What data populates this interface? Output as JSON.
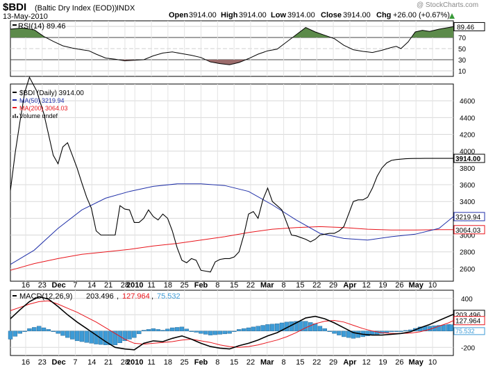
{
  "header": {
    "symbol": "$BDI",
    "name": "(Baltic Dry Index (EOD))",
    "exchange": "INDX",
    "date": "13-May-2010",
    "open_label": "Open",
    "open": "3914.00",
    "high_label": "High",
    "high": "3914.00",
    "low_label": "Low",
    "low": "3914.00",
    "close_label": "Close",
    "close": "3914.00",
    "chg_label": "Chg",
    "chg": "+26.00 (+0.67%)",
    "watermark": "@ StockCharts.com"
  },
  "colors": {
    "price": "#000000",
    "ma50": "#1f2fa8",
    "ma200": "#e8141b",
    "rsi_line": "#000000",
    "rsi_over": "#5c8a4a",
    "rsi_under": "#9b6b6b",
    "macd_line": "#000000",
    "signal_line": "#e8141b",
    "hist": "#3d9bd6",
    "grid": "#d8d8d8",
    "price_badge": "#000000",
    "ma50_badge": "#1f2fa8",
    "ma200_badge": "#e8141b"
  },
  "chart_data": [
    {
      "type": "line",
      "panel": "rsi",
      "legend": "RSI(14) 89.46",
      "badge": "89.46",
      "ylim": [
        0,
        100
      ],
      "ticks": [
        "90",
        "70",
        "50",
        "30",
        "10"
      ],
      "overbought": 70,
      "oversold": 30,
      "x": [
        0,
        2,
        5,
        10,
        14,
        18,
        22,
        26,
        30,
        33,
        36,
        40,
        44,
        48,
        52,
        56,
        60,
        64,
        68,
        72,
        76,
        80,
        84,
        88,
        92,
        96,
        100,
        104,
        108,
        112,
        116,
        120,
        124,
        128,
        132,
        136,
        140,
        144,
        148,
        150,
        152,
        156,
        160,
        162,
        164,
        167,
        170,
        173,
        176,
        180,
        184,
        186
      ],
      "values": [
        85,
        86,
        87,
        84,
        72,
        63,
        55,
        51,
        48,
        46,
        40,
        33,
        31,
        28,
        29,
        30,
        37,
        42,
        44,
        41,
        38,
        34,
        26,
        23,
        21,
        25,
        32,
        40,
        46,
        49,
        62,
        75,
        88,
        80,
        74,
        68,
        56,
        48,
        45,
        44,
        43,
        47,
        52,
        54,
        50,
        62,
        80,
        83,
        81,
        85,
        88,
        89.46
      ]
    },
    {
      "type": "line",
      "panel": "price",
      "legend_price": "$BDI (Daily) 3914.00",
      "legend_ma50": "MA(50) 3219.94",
      "legend_ma200": "MA(200) 3064.03",
      "legend_volume": "Volume undef",
      "badge_price": "3914.00",
      "badge_ma50": "3219.94",
      "badge_ma200": "3064.03",
      "ylim": [
        2450,
        4800
      ],
      "ticks": [
        "4600",
        "4400",
        "4200",
        "4000",
        "3800",
        "3600",
        "3400",
        "3200",
        "3000",
        "2800",
        "2600"
      ],
      "x_price": [
        0,
        2,
        4,
        6,
        8,
        11,
        14,
        16,
        18,
        20,
        22,
        24,
        26,
        28,
        30,
        32,
        34,
        36,
        38,
        40,
        42,
        44,
        46,
        48,
        50,
        52,
        54,
        56,
        58,
        60,
        62,
        64,
        66,
        68,
        70,
        72,
        74,
        76,
        78,
        80,
        82,
        84,
        86,
        88,
        90,
        92,
        94,
        96,
        98,
        100,
        102,
        104,
        106,
        108,
        110,
        112,
        114,
        116,
        118,
        120,
        122,
        124,
        126,
        128,
        130,
        132,
        134,
        136,
        138,
        140,
        142,
        144,
        146,
        148,
        150,
        152,
        154,
        156,
        158,
        160,
        162,
        164,
        166,
        168,
        170,
        172,
        174,
        176,
        178,
        180,
        182,
        184,
        186
      ],
      "price": [
        3530,
        3980,
        4350,
        4700,
        4880,
        4720,
        4450,
        4200,
        3950,
        3850,
        4050,
        4100,
        3950,
        3800,
        3620,
        3450,
        3320,
        3050,
        3000,
        3000,
        3000,
        3000,
        3350,
        3310,
        3300,
        3150,
        3150,
        3200,
        3300,
        3220,
        3180,
        3250,
        3200,
        3050,
        2850,
        2700,
        2670,
        2720,
        2700,
        2580,
        2570,
        2560,
        2680,
        2710,
        2720,
        2720,
        2740,
        2800,
        3000,
        3250,
        3280,
        3200,
        3420,
        3560,
        3400,
        3350,
        3300,
        3150,
        3000,
        2990,
        2970,
        2950,
        2920,
        2950,
        3000,
        3010,
        3020,
        3020,
        3050,
        3100,
        3250,
        3400,
        3420,
        3420,
        3450,
        3560,
        3700,
        3800,
        3860,
        3890,
        3900,
        3905,
        3910,
        3912,
        3913,
        3913,
        3914,
        3914,
        3914,
        3914,
        3914,
        3914,
        3914
      ],
      "x_ma": [
        0,
        10,
        20,
        30,
        40,
        50,
        60,
        70,
        80,
        90,
        100,
        110,
        120,
        130,
        140,
        150,
        160,
        170,
        180,
        186
      ],
      "ma50": [
        2650,
        2820,
        3080,
        3300,
        3440,
        3520,
        3580,
        3610,
        3610,
        3590,
        3520,
        3360,
        3180,
        3020,
        2960,
        2940,
        2980,
        3010,
        3080,
        3219.94
      ],
      "ma200": [
        2580,
        2660,
        2720,
        2770,
        2800,
        2830,
        2870,
        2900,
        2940,
        2980,
        3030,
        3070,
        3090,
        3100,
        3090,
        3070,
        3060,
        3060,
        3065,
        3064.03
      ]
    },
    {
      "type": "line",
      "panel": "macd",
      "legend_prefix": "MACD(12,26,9)",
      "legend_macd": "203.496",
      "legend_signal": "127.964",
      "legend_hist": "75.532",
      "badge_macd": "203.496",
      "badge_signal": "127.964",
      "badge_hist": "75.532",
      "ylim": [
        -300,
        500
      ],
      "ticks": [
        "400",
        "200",
        "0",
        "-200"
      ],
      "x": [
        0,
        4,
        8,
        12,
        16,
        20,
        24,
        28,
        32,
        36,
        40,
        44,
        48,
        52,
        56,
        60,
        64,
        68,
        72,
        76,
        80,
        84,
        88,
        92,
        96,
        100,
        104,
        108,
        112,
        116,
        120,
        124,
        128,
        132,
        136,
        140,
        144,
        148,
        152,
        156,
        160,
        164,
        168,
        172,
        176,
        180,
        184,
        186
      ],
      "macd": [
        150,
        260,
        360,
        420,
        390,
        300,
        200,
        110,
        30,
        -50,
        -130,
        -200,
        -220,
        -230,
        -150,
        -120,
        -130,
        -90,
        -60,
        -100,
        -150,
        -190,
        -210,
        -220,
        -180,
        -150,
        -110,
        -60,
        -20,
        40,
        100,
        160,
        180,
        150,
        100,
        40,
        -20,
        -40,
        -50,
        -50,
        -40,
        -30,
        -10,
        40,
        80,
        130,
        180,
        203.496
      ],
      "signal": [
        250,
        290,
        330,
        360,
        370,
        330,
        280,
        230,
        170,
        110,
        40,
        -30,
        -100,
        -150,
        -160,
        -150,
        -140,
        -130,
        -110,
        -100,
        -120,
        -140,
        -170,
        -190,
        -200,
        -190,
        -170,
        -140,
        -110,
        -70,
        -20,
        40,
        90,
        120,
        130,
        110,
        70,
        30,
        0,
        -20,
        -30,
        -30,
        -25,
        -10,
        20,
        60,
        100,
        127.964
      ],
      "x_label": [
        "16",
        "23",
        "Dec",
        "7",
        "14",
        "21",
        "28",
        "2010",
        "11",
        "18",
        "25",
        "Feb",
        "8",
        "15",
        "22",
        "Mar",
        "8",
        "15",
        "22",
        "29",
        "Apr",
        "12",
        "19",
        "26",
        "May",
        "10"
      ]
    }
  ],
  "x_axis": {
    "labels": [
      "16",
      "23",
      "Dec",
      "7",
      "14",
      "21",
      "28",
      "2010",
      "11",
      "18",
      "25",
      "Feb",
      "8",
      "15",
      "22",
      "Mar",
      "8",
      "15",
      "22",
      "29",
      "Apr",
      "12",
      "19",
      "26",
      "May",
      "10"
    ],
    "bold": [
      "Dec",
      "2010",
      "Feb",
      "Mar",
      "Apr",
      "May"
    ],
    "positions": [
      0,
      5,
      10,
      15,
      20,
      25,
      30,
      33,
      38,
      43,
      48,
      53,
      58,
      63,
      68,
      73,
      78,
      83,
      88,
      93,
      98,
      103,
      108,
      113,
      118,
      123
    ]
  }
}
